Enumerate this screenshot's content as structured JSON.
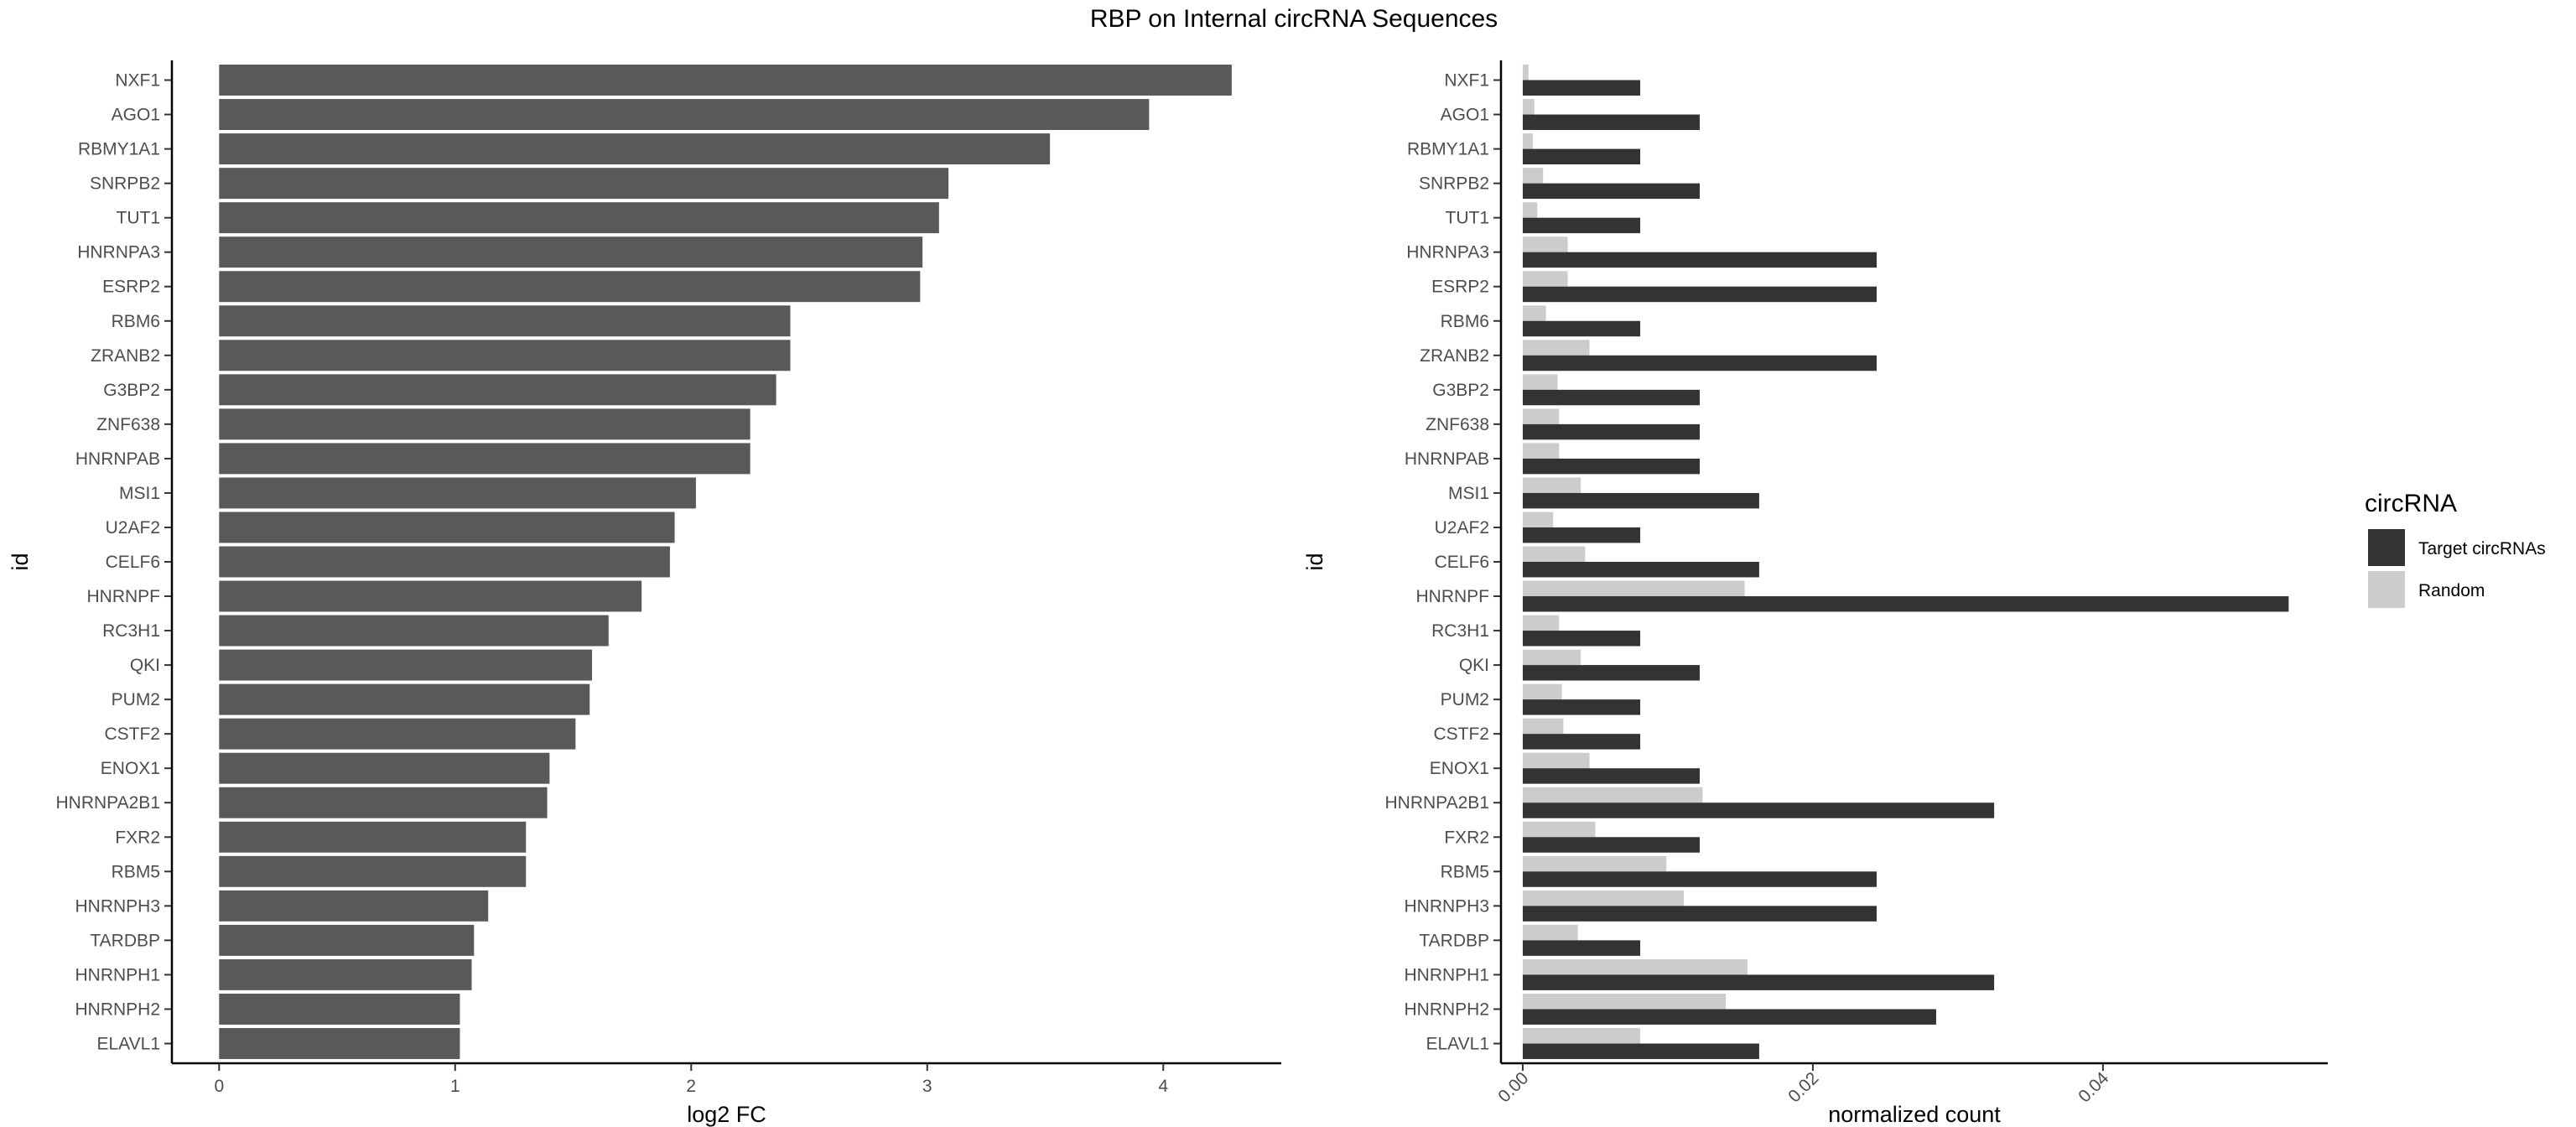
{
  "chart_data": [
    {
      "type": "bar",
      "orientation": "horizontal",
      "title": "RBP on Internal circRNA Sequences",
      "xlabel": "log2 FC",
      "ylabel": "id",
      "xlim": [
        -0.2,
        4.5
      ],
      "xticks": [
        0,
        1,
        2,
        3,
        4
      ],
      "xtick_labels": [
        "0",
        "1",
        "2",
        "3",
        "4"
      ],
      "grid": false,
      "bar_color": "#595959",
      "categories": [
        "NXF1",
        "AGO1",
        "RBMY1A1",
        "SNRPB2",
        "TUT1",
        "HNRNPA3",
        "ESRP2",
        "RBM6",
        "ZRANB2",
        "G3BP2",
        "ZNF638",
        "HNRNPAB",
        "MSI1",
        "U2AF2",
        "CELF6",
        "HNRNPF",
        "RC3H1",
        "QKI",
        "PUM2",
        "CSTF2",
        "ENOX1",
        "HNRNPA2B1",
        "FXR2",
        "RBM5",
        "HNRNPH3",
        "TARDBP",
        "HNRNPH1",
        "HNRNPH2",
        "ELAVL1"
      ],
      "values": [
        4.29,
        3.94,
        3.52,
        3.09,
        3.05,
        2.98,
        2.97,
        2.42,
        2.42,
        2.36,
        2.25,
        2.25,
        2.02,
        1.93,
        1.91,
        1.79,
        1.65,
        1.58,
        1.57,
        1.51,
        1.4,
        1.39,
        1.3,
        1.3,
        1.14,
        1.08,
        1.07,
        1.02,
        1.02
      ]
    },
    {
      "type": "bar",
      "orientation": "horizontal",
      "xlabel": "normalized count",
      "ylabel": "id",
      "xlim": [
        -0.0015,
        0.0555
      ],
      "xticks": [
        0.0,
        0.02,
        0.04
      ],
      "xtick_labels": [
        "0.00",
        "0.02",
        "0.04"
      ],
      "grid": false,
      "categories": [
        "NXF1",
        "AGO1",
        "RBMY1A1",
        "SNRPB2",
        "TUT1",
        "HNRNPA3",
        "ESRP2",
        "RBM6",
        "ZRANB2",
        "G3BP2",
        "ZNF638",
        "HNRNPAB",
        "MSI1",
        "U2AF2",
        "CELF6",
        "HNRNPF",
        "RC3H1",
        "QKI",
        "PUM2",
        "CSTF2",
        "ENOX1",
        "HNRNPA2B1",
        "FXR2",
        "RBM5",
        "HNRNPH3",
        "TARDBP",
        "HNRNPH1",
        "HNRNPH2",
        "ELAVL1"
      ],
      "legend_title": "circRNA",
      "legend_position": "right",
      "series": [
        {
          "name": "Target circRNAs",
          "color": "#333333",
          "values": [
            0.0081,
            0.0122,
            0.0081,
            0.0122,
            0.0081,
            0.0244,
            0.0244,
            0.0081,
            0.0244,
            0.0122,
            0.0122,
            0.0122,
            0.0163,
            0.0081,
            0.0163,
            0.0528,
            0.0081,
            0.0122,
            0.0081,
            0.0081,
            0.0122,
            0.0325,
            0.0122,
            0.0244,
            0.0244,
            0.0081,
            0.0325,
            0.0285,
            0.0163
          ]
        },
        {
          "name": "Random",
          "color": "#cccccc",
          "values": [
            0.0004,
            0.0008,
            0.0007,
            0.0014,
            0.001,
            0.0031,
            0.0031,
            0.0016,
            0.0046,
            0.0024,
            0.0025,
            0.0025,
            0.004,
            0.0021,
            0.0043,
            0.0153,
            0.0025,
            0.004,
            0.0027,
            0.0028,
            0.0046,
            0.0124,
            0.005,
            0.0099,
            0.0111,
            0.0038,
            0.0155,
            0.014,
            0.0081
          ]
        }
      ]
    }
  ]
}
